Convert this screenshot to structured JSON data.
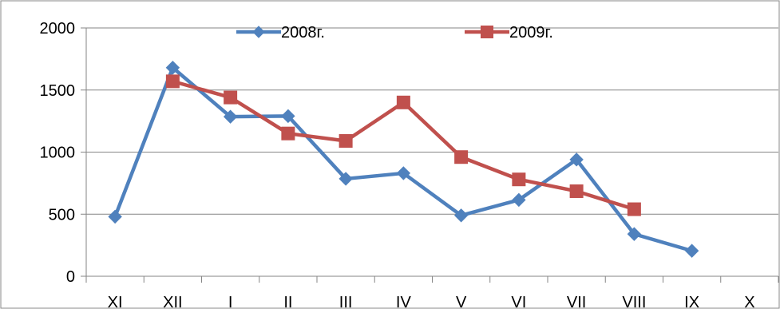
{
  "chart_data": {
    "type": "line",
    "title": "",
    "xlabel": "",
    "ylabel": "",
    "categories": [
      "XI",
      "XII",
      "I",
      "II",
      "III",
      "IV",
      "V",
      "VI",
      "VII",
      "VIII",
      "IX",
      "X"
    ],
    "ylim": [
      0,
      2000
    ],
    "yticks": [
      "0",
      "500",
      "1000",
      "1500",
      "2000"
    ],
    "grid": true,
    "legend_position": "top",
    "series": [
      {
        "name": "2008г.",
        "color": "#4F81BD",
        "marker": "diamond",
        "values": [
          480,
          1680,
          1285,
          1290,
          785,
          830,
          490,
          615,
          940,
          340,
          205,
          null
        ]
      },
      {
        "name": "2009г.",
        "color": "#C0504D",
        "marker": "square",
        "values": [
          null,
          1570,
          1440,
          1150,
          1090,
          1400,
          960,
          780,
          685,
          540,
          null,
          null
        ]
      }
    ]
  }
}
